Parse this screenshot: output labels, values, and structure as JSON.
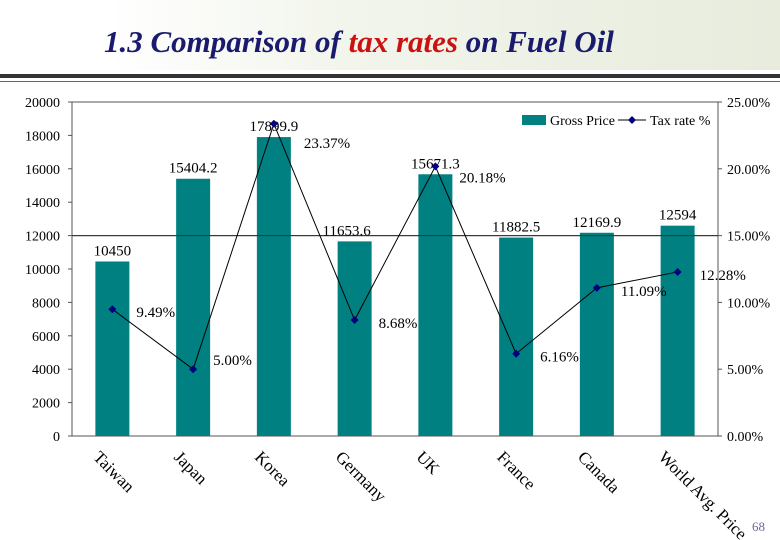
{
  "slide": {
    "title_prefix": "1.3 Comparison of ",
    "title_highlight": "tax rates",
    "title_suffix": " on Fuel Oil",
    "page_number": "68"
  },
  "colors": {
    "bar": "#008080",
    "line": "#000080",
    "title": "#1a1a6e",
    "highlight": "#cc1111"
  },
  "chart_data": {
    "type": "bar",
    "categories": [
      "Taiwan",
      "Japan",
      "Korea",
      "Germany",
      "UK",
      "France",
      "Canada",
      "World Avg. Price"
    ],
    "series": [
      {
        "name": "Gross Price",
        "type": "bar",
        "axis": "left",
        "values": [
          10450,
          15404.2,
          17899.9,
          11653.6,
          15671.3,
          11882.5,
          12169.9,
          12594
        ],
        "labels": [
          "10450",
          "15404.2",
          "17899.9",
          "11653.6",
          "15671.3",
          "11882.5",
          "12169.9",
          "12594"
        ]
      },
      {
        "name": "Tax rate %",
        "type": "line",
        "axis": "right",
        "values": [
          9.49,
          5.0,
          23.37,
          8.68,
          20.18,
          6.16,
          11.09,
          12.28
        ],
        "labels": [
          "9.49%",
          "5.00%",
          "23.37%",
          "8.68%",
          "20.18%",
          "6.16%",
          "11.09%",
          "12.28%"
        ]
      }
    ],
    "y_left": {
      "min": 0,
      "max": 20000,
      "ticks": [
        "0",
        "2000",
        "4000",
        "6000",
        "8000",
        "10000",
        "12000",
        "14000",
        "16000",
        "18000",
        "20000"
      ]
    },
    "y_right": {
      "min": 0,
      "max": 25,
      "ticks": [
        "0.00%",
        "5.00%",
        "10.00%",
        "15.00%",
        "20.00%",
        "25.00%"
      ]
    },
    "reference_line": 15,
    "legend_position": "top-right",
    "grid": false
  }
}
